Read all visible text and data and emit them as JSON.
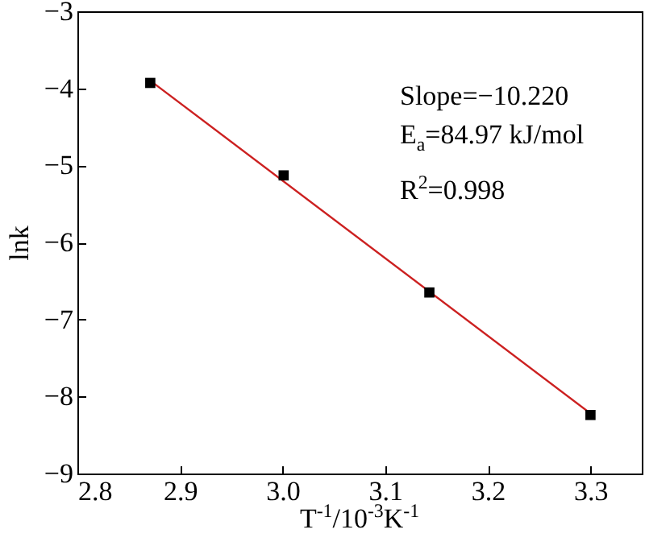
{
  "chart_data": {
    "type": "scatter",
    "xlabel": "T$^{-1}$/10$^{-3}$K$^{-1}$",
    "ylabel": "lnk",
    "xlim": [
      2.8,
      3.35
    ],
    "xticks": [
      2.8,
      2.9,
      {
        "value": 3.0,
        "label": "3.0"
      },
      3.1,
      3.2,
      3.3
    ],
    "ylim": [
      -9,
      -3
    ],
    "yticks": [
      -9,
      -8,
      -7,
      -6,
      -5,
      -4,
      -3
    ],
    "series": [
      {
        "color": "#000000",
        "marker": "square",
        "x": [
          2.871,
          3.001,
          3.143,
          3.3
        ],
        "values": [
          -3.93,
          -5.13,
          -6.65,
          -8.24
        ]
      },
      {
        "type": "line",
        "color": "#cc2020",
        "x": [
          2.871,
          3.3
        ],
        "values": [
          -3.9,
          -8.22
        ]
      }
    ],
    "annotations": [
      "Slope=−10.220",
      "E$_{a}$=84.97 kJ/mol",
      "R$^{2}$=0.998"
    ]
  }
}
